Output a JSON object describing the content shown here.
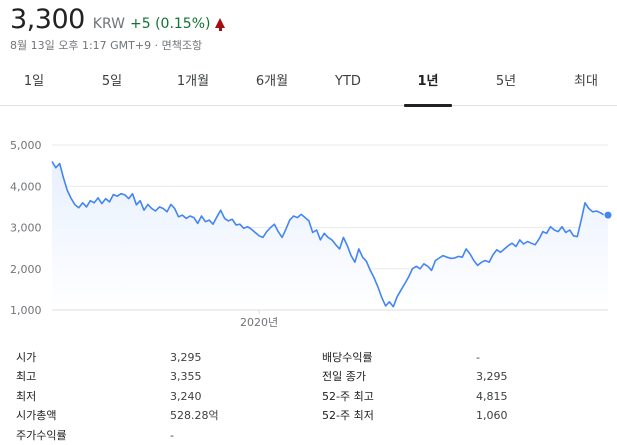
{
  "header": {
    "price": "3,300",
    "currency": "KRW",
    "change": "+5 (0.15%)",
    "timestamp": "8월 13일 오후 1:17 GMT+9 · 면책조항",
    "change_color": "#137333",
    "arrow_color": "#a50e0e"
  },
  "tabs": [
    {
      "label": "1일",
      "active": false
    },
    {
      "label": "5일",
      "active": false
    },
    {
      "label": "1개월",
      "active": false
    },
    {
      "label": "6개월",
      "active": false
    },
    {
      "label": "YTD",
      "active": false
    },
    {
      "label": "1년",
      "active": true
    },
    {
      "label": "5년",
      "active": false
    },
    {
      "label": "최대",
      "active": false
    }
  ],
  "chart_data": {
    "type": "area",
    "line_color": "#4285f4",
    "fill_color": "#e8f0fe",
    "ylim": [
      1000,
      5000
    ],
    "yticks": [
      5000,
      4000,
      3000,
      2000,
      1000
    ],
    "ytick_labels": [
      "5,000",
      "4,000",
      "3,000",
      "2,000",
      "1,000"
    ],
    "xtick_labels": [
      {
        "label": "2020년",
        "index": 54
      }
    ],
    "grid": true,
    "values": [
      4600,
      4450,
      4550,
      4200,
      3900,
      3700,
      3550,
      3480,
      3600,
      3500,
      3650,
      3600,
      3720,
      3580,
      3700,
      3620,
      3800,
      3760,
      3820,
      3790,
      3700,
      3820,
      3550,
      3650,
      3420,
      3560,
      3460,
      3400,
      3500,
      3460,
      3380,
      3560,
      3460,
      3260,
      3300,
      3220,
      3280,
      3240,
      3100,
      3280,
      3140,
      3180,
      3080,
      3260,
      3420,
      3220,
      3160,
      3200,
      3060,
      3080,
      2980,
      3020,
      2960,
      2880,
      2800,
      2760,
      2900,
      3000,
      3080,
      2900,
      2760,
      2960,
      3180,
      3280,
      3240,
      3320,
      3240,
      3160,
      2880,
      2940,
      2700,
      2860,
      2760,
      2700,
      2580,
      2480,
      2760,
      2560,
      2320,
      2160,
      2480,
      2280,
      2180,
      1960,
      1780,
      1560,
      1300,
      1100,
      1200,
      1080,
      1320,
      1480,
      1640,
      1800,
      2000,
      2060,
      2000,
      2120,
      2060,
      1960,
      2200,
      2260,
      2320,
      2280,
      2250,
      2260,
      2300,
      2280,
      2480,
      2360,
      2200,
      2080,
      2160,
      2200,
      2160,
      2340,
      2460,
      2400,
      2480,
      2560,
      2620,
      2540,
      2700,
      2600,
      2660,
      2620,
      2580,
      2720,
      2900,
      2860,
      3020,
      2940,
      2900,
      3020,
      2880,
      2940,
      2800,
      2780,
      3180,
      3600,
      3460,
      3380,
      3400,
      3360,
      3300,
      3300
    ]
  },
  "stats": {
    "left": [
      {
        "label": "시가",
        "value": "3,295"
      },
      {
        "label": "최고",
        "value": "3,355"
      },
      {
        "label": "최저",
        "value": "3,240"
      },
      {
        "label": "시가총액",
        "value": "528.28억"
      },
      {
        "label": "주가수익률",
        "value": "-"
      }
    ],
    "right": [
      {
        "label": "배당수익률",
        "value": "-"
      },
      {
        "label": "전일 종가",
        "value": "3,295"
      },
      {
        "label": "52-주 최고",
        "value": "4,815"
      },
      {
        "label": "52-주 최저",
        "value": "1,060"
      }
    ]
  }
}
